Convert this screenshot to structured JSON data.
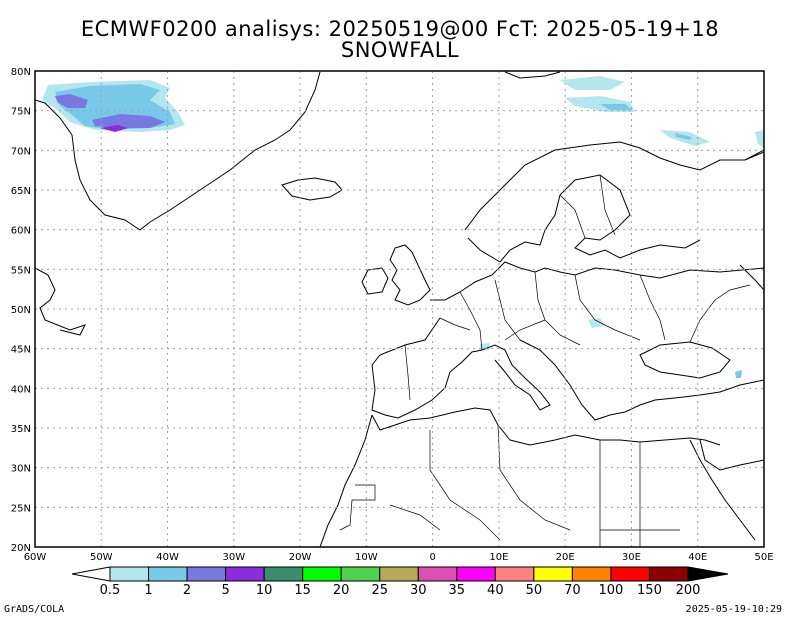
{
  "title_line1": "ECMWF0200 analisys: 20250519@00 FcT: 2025-05-19+18",
  "title_line2": "SNOWFALL",
  "map": {
    "lon_labels": [
      "60W",
      "50W",
      "40W",
      "30W",
      "20W",
      "10W",
      "0",
      "10E",
      "20E",
      "30E",
      "40E",
      "50E"
    ],
    "lat_labels": [
      "80N",
      "75N",
      "70N",
      "65N",
      "60N",
      "55N",
      "50N",
      "45N",
      "40N",
      "35N",
      "30N",
      "25N",
      "20N"
    ],
    "grid": "dotted",
    "lon_range": [
      -60,
      50
    ],
    "lat_range": [
      20,
      80
    ]
  },
  "colorbar": {
    "labels": [
      "0.5",
      "1",
      "2",
      "5",
      "10",
      "15",
      "20",
      "25",
      "30",
      "35",
      "40",
      "50",
      "70",
      "100",
      "150",
      "200"
    ],
    "colors": [
      "#b4e6f0",
      "#78c8e8",
      "#7878e0",
      "#8c2ce0",
      "#3c8c6e",
      "#00ff00",
      "#50d250",
      "#b4aa5a",
      "#dc50b4",
      "#ff00ff",
      "#ff8282",
      "#ffff00",
      "#ff8200",
      "#ff0000",
      "#8c0000"
    ],
    "under_color": "#ffffff",
    "over_color": "#000000"
  },
  "footer_left": "GrADS/COLA",
  "footer_right": "2025-05-19-10:29"
}
